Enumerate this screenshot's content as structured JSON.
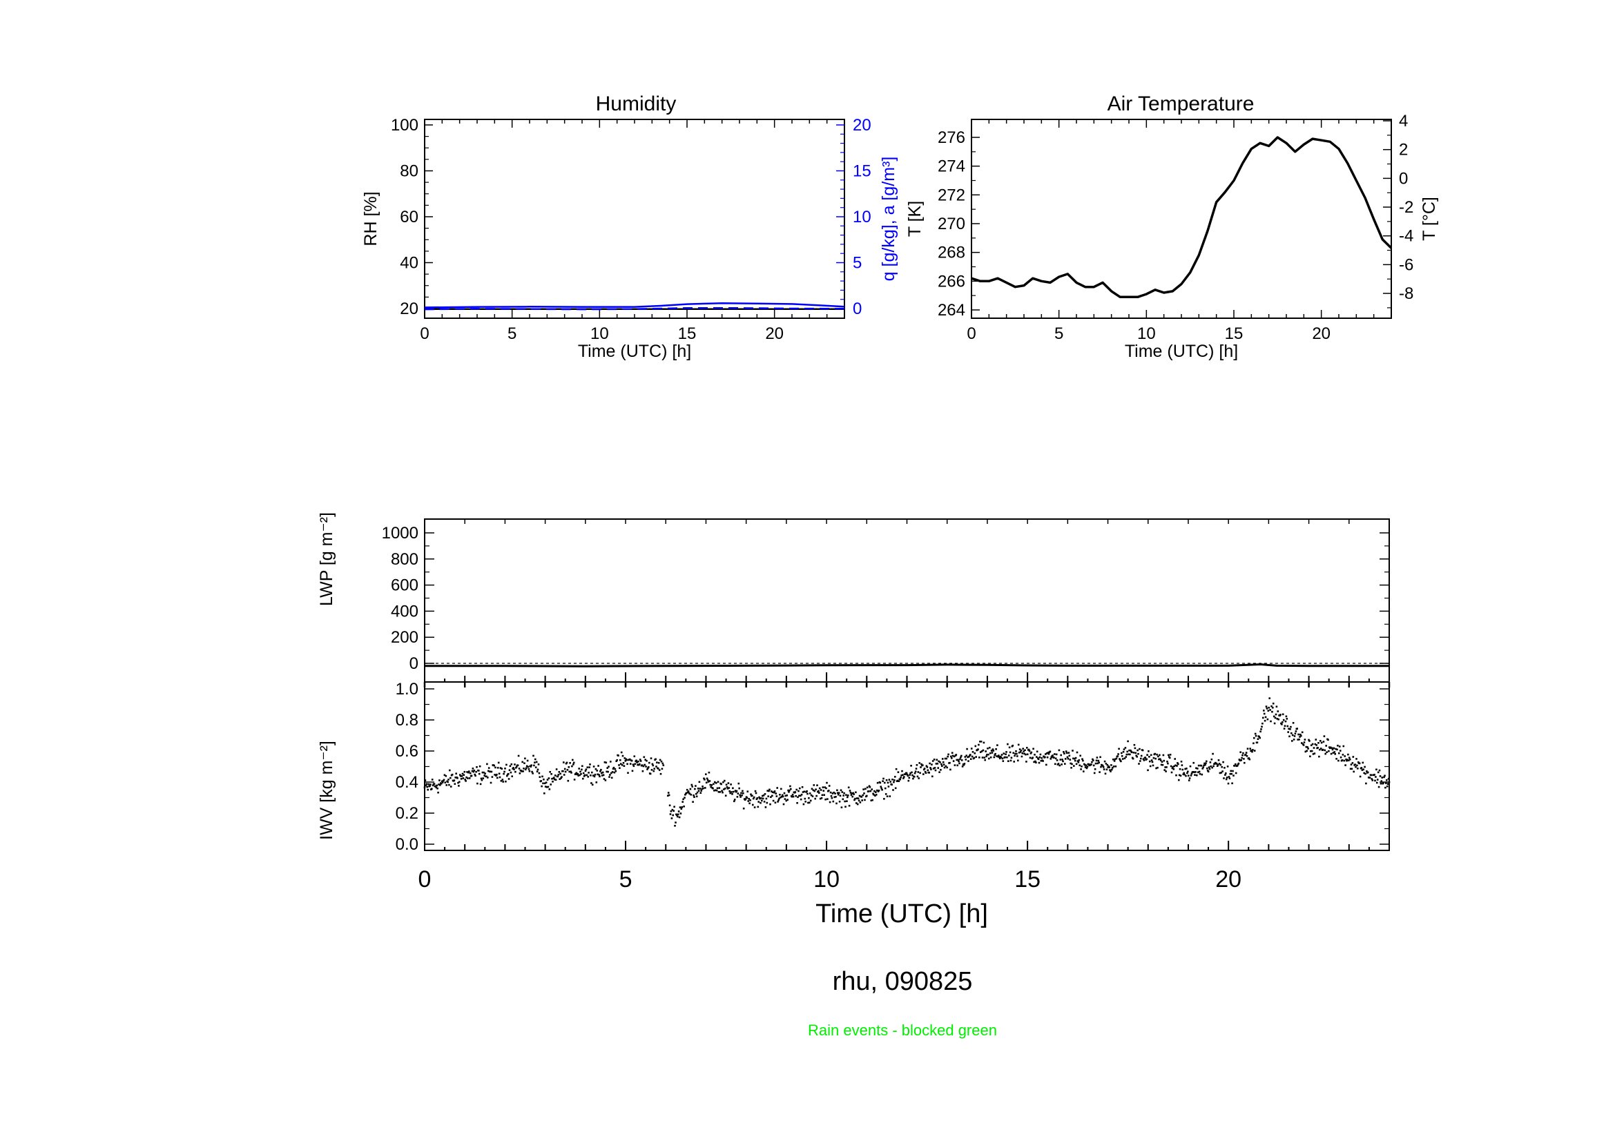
{
  "figure": {
    "caption": "rhu, 090825",
    "note": "Rain events - blocked green",
    "colors": {
      "ink": "#000000",
      "secondary_axis": "#0000ff",
      "note": "#00ee00"
    }
  },
  "chart_data": [
    {
      "id": "humidity",
      "type": "line",
      "title": "Humidity",
      "xlabel": "Time (UTC) [h]",
      "ylabel": "RH [%]",
      "y2label": "q [g/kg], a [g/m³]",
      "xlim": [
        0,
        24
      ],
      "ylim": [
        20,
        100
      ],
      "y2lim": [
        0,
        20
      ],
      "xticks": [
        "0",
        "5",
        "10",
        "15",
        "20"
      ],
      "yticks": [
        "20",
        "40",
        "60",
        "80",
        "100"
      ],
      "y2ticks": [
        "0",
        "5",
        "10",
        "15",
        "20"
      ],
      "series": [
        {
          "name": "RH",
          "axis": "left",
          "color": "#000000",
          "style": "solid",
          "x": [
            0,
            4,
            8,
            12,
            16,
            20,
            24
          ],
          "y": [
            19.8,
            19.8,
            19.8,
            19.8,
            19.8,
            19.8,
            19.8
          ]
        },
        {
          "name": "q",
          "axis": "right",
          "color": "#0000ff",
          "style": "solid",
          "x": [
            0,
            3,
            6,
            9,
            12,
            13.5,
            15,
            17,
            19,
            21,
            22.5,
            24
          ],
          "y": [
            0.12,
            0.18,
            0.2,
            0.18,
            0.18,
            0.3,
            0.48,
            0.58,
            0.55,
            0.5,
            0.35,
            0.2
          ]
        },
        {
          "name": "a",
          "axis": "right",
          "color": "#0000ff",
          "style": "dashed",
          "x": [
            0,
            3,
            6,
            9,
            12,
            15,
            18,
            21,
            24
          ],
          "y": [
            -0.08,
            -0.02,
            -0.05,
            -0.08,
            -0.05,
            0.05,
            0.05,
            0.0,
            -0.02
          ]
        }
      ]
    },
    {
      "id": "air-temperature",
      "type": "line",
      "title": "Air Temperature",
      "xlabel": "Time (UTC) [h]",
      "ylabel": "T [K]",
      "y2label": "T [°C]",
      "xlim": [
        0,
        24
      ],
      "ylim": [
        263.6,
        276.8
      ],
      "y2lim": [
        -9.55,
        3.65
      ],
      "xticks": [
        "0",
        "5",
        "10",
        "15",
        "20"
      ],
      "yticks": [
        "264",
        "266",
        "268",
        "270",
        "272",
        "274",
        "276"
      ],
      "y2ticks": [
        "-8",
        "-6",
        "-4",
        "-2",
        "0",
        "2",
        "4"
      ],
      "series": [
        {
          "name": "T",
          "color": "#000000",
          "style": "solid",
          "x": [
            0,
            0.5,
            1,
            1.5,
            2,
            2.5,
            3,
            3.5,
            4,
            4.5,
            5,
            5.5,
            6,
            6.5,
            7,
            7.5,
            8,
            8.5,
            9,
            9.5,
            10,
            10.5,
            11,
            11.5,
            12,
            12.5,
            13,
            13.5,
            14,
            14.5,
            15,
            15.5,
            16,
            16.5,
            17,
            17.5,
            18,
            18.5,
            19,
            19.5,
            20,
            20.5,
            21,
            21.5,
            22,
            22.5,
            23,
            23.5,
            24
          ],
          "y": [
            266.2,
            266.0,
            266.0,
            266.2,
            265.9,
            265.6,
            265.7,
            266.2,
            266.0,
            265.9,
            266.3,
            266.5,
            265.9,
            265.6,
            265.6,
            265.9,
            265.3,
            264.9,
            264.9,
            264.9,
            265.1,
            265.4,
            265.2,
            265.3,
            265.8,
            266.6,
            267.8,
            269.5,
            271.5,
            272.2,
            273.0,
            274.2,
            275.2,
            275.6,
            275.4,
            276.0,
            275.6,
            275.0,
            275.5,
            275.9,
            275.8,
            275.7,
            275.2,
            274.2,
            273.0,
            271.8,
            270.3,
            268.9,
            268.3
          ]
        }
      ]
    },
    {
      "id": "lwp",
      "type": "line",
      "xlabel": "",
      "ylabel": "LWP [g m⁻²]",
      "xlim": [
        0,
        24
      ],
      "ylim": [
        -50,
        1150
      ],
      "yticks": [
        "0",
        "200",
        "400",
        "600",
        "800",
        "1000"
      ],
      "series": [
        {
          "name": "LWP",
          "color": "#000000",
          "style": "solid",
          "x": [
            0,
            2,
            4,
            6,
            8,
            10,
            12,
            13,
            14,
            15,
            16,
            18,
            20,
            20.8,
            21.2,
            22,
            24
          ],
          "y": [
            -20,
            -20,
            -22,
            -20,
            -18,
            -15,
            -14,
            -10,
            -12,
            -16,
            -18,
            -18,
            -18,
            -8,
            -18,
            -20,
            -20
          ]
        }
      ]
    },
    {
      "id": "iwv",
      "type": "scatter",
      "xlabel": "Time (UTC) [h]",
      "ylabel": "IWV [kg m⁻²]",
      "xlim": [
        0,
        24
      ],
      "ylim": [
        -0.05,
        1.05
      ],
      "xticks": [
        "0",
        "5",
        "10",
        "15",
        "20"
      ],
      "yticks": [
        "0.0",
        "0.2",
        "0.4",
        "0.6",
        "0.8",
        "1.0"
      ],
      "trend": {
        "x": [
          0,
          0.5,
          1,
          1.5,
          2,
          2.5,
          2.8,
          2.9,
          3.2,
          3.5,
          4,
          4.5,
          4.9,
          5.3,
          5.8,
          6.0,
          6.1,
          6.3,
          6.5,
          6.8,
          7,
          7.5,
          8,
          8.5,
          9,
          9.5,
          10,
          10.5,
          11,
          11.5,
          12,
          12.5,
          13,
          13.5,
          13.8,
          14,
          14.5,
          15,
          15.5,
          16,
          16.5,
          17,
          17.5,
          18,
          18.5,
          19,
          19.5,
          19.8,
          20.0,
          20.3,
          20.6,
          20.8,
          21,
          21.5,
          22,
          22.5,
          22.8,
          23,
          23.5,
          24
        ],
        "y": [
          0.36,
          0.4,
          0.44,
          0.45,
          0.47,
          0.5,
          0.52,
          0.38,
          0.4,
          0.48,
          0.47,
          0.46,
          0.53,
          0.52,
          0.5,
          0.5,
          0.22,
          0.18,
          0.32,
          0.36,
          0.4,
          0.35,
          0.3,
          0.3,
          0.32,
          0.32,
          0.33,
          0.3,
          0.32,
          0.37,
          0.45,
          0.48,
          0.52,
          0.55,
          0.6,
          0.58,
          0.57,
          0.58,
          0.56,
          0.55,
          0.52,
          0.5,
          0.6,
          0.55,
          0.52,
          0.45,
          0.5,
          0.52,
          0.42,
          0.55,
          0.62,
          0.75,
          0.88,
          0.75,
          0.63,
          0.62,
          0.58,
          0.55,
          0.45,
          0.4
        ]
      },
      "scatter_spread": 0.055,
      "scatter_count": 1500
    }
  ]
}
